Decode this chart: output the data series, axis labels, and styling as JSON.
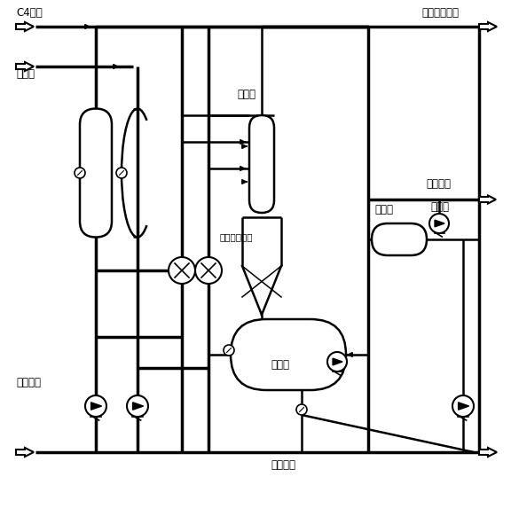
{
  "bg_color": "#ffffff",
  "lc": "#000000",
  "labels": {
    "c4_feed": "C4原料",
    "refrigerant": "制冷剂",
    "fresh_acid": "新鲜硫酸",
    "reactor": "反应器",
    "microchannel": "微通道反应区",
    "separator": "分离罐",
    "coalescer": "聚结器",
    "to_sep_refrig": "去分离、制冷",
    "alkylate": "烷基化油",
    "to_sep": "去分离",
    "recycle_acid": "循环硫酸"
  },
  "figsize": [
    5.76,
    5.91
  ],
  "dpi": 100
}
